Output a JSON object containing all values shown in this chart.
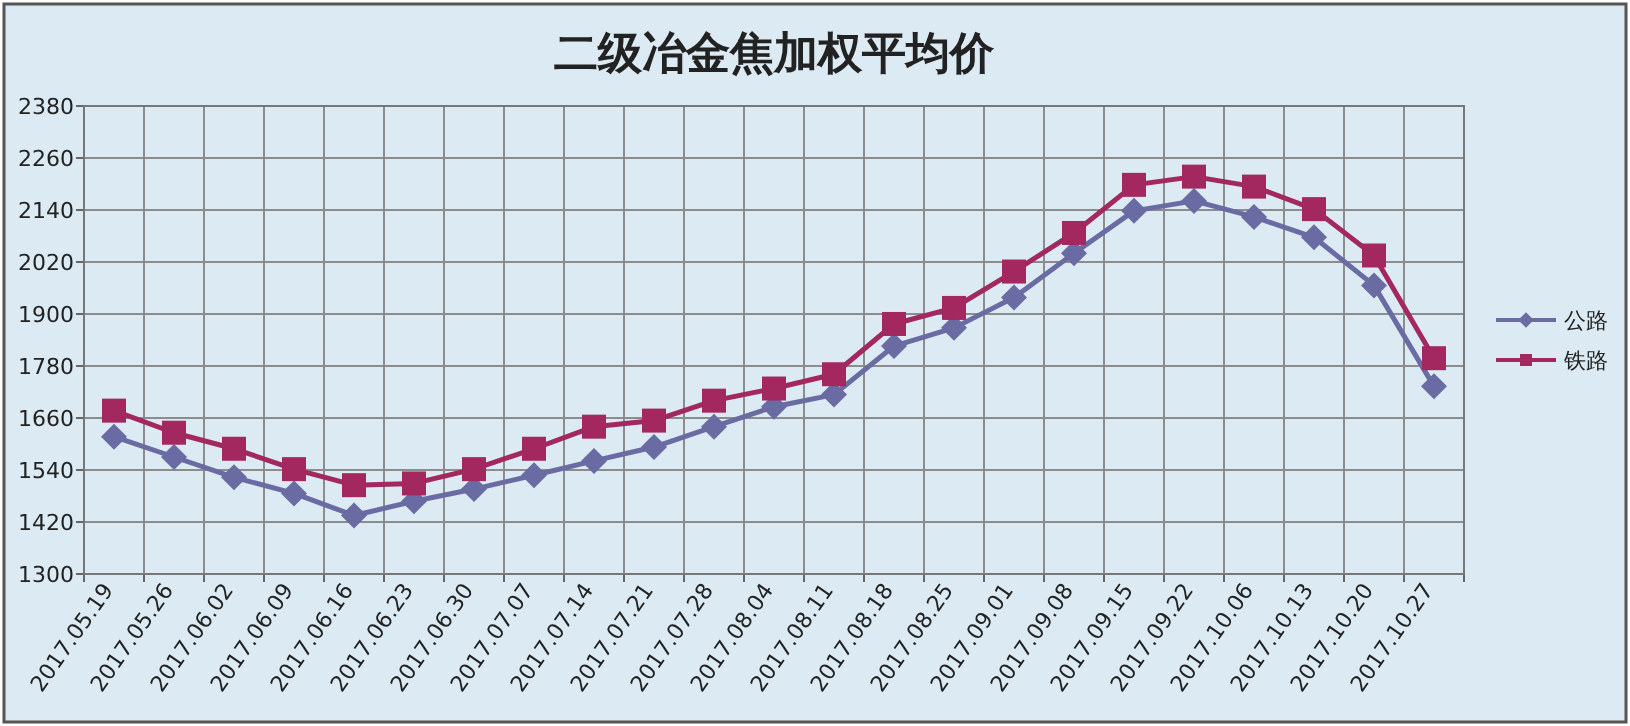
{
  "chart_data": {
    "type": "line",
    "title": "二级冶金焦加权平均价",
    "categories": [
      "2017.05.19",
      "2017.05.26",
      "2017.06.02",
      "2017.06.09",
      "2017.06.16",
      "2017.06.23",
      "2017.06.30",
      "2017.07.07",
      "2017.07.14",
      "2017.07.21",
      "2017.07.28",
      "2017.08.04",
      "2017.08.11",
      "2017.08.18",
      "2017.08.25",
      "2017.09.01",
      "2017.09.08",
      "2017.09.15",
      "2017.09.22",
      "2017.10.06",
      "2017.10.13",
      "2017.10.20",
      "2017.10.27"
    ],
    "series": [
      {
        "name": "公路",
        "color": "#6b6ba3",
        "marker": "diamond",
        "values": [
          1617,
          1570,
          1523,
          1486,
          1435,
          1468,
          1496,
          1528,
          1561,
          1593,
          1640,
          1686,
          1714,
          1826,
          1868,
          1938,
          2040,
          2138,
          2161,
          2124,
          2077,
          1966,
          1733
        ]
      },
      {
        "name": "铁路",
        "color": "#a3285f",
        "marker": "square",
        "values": [
          1677,
          1626,
          1589,
          1542,
          1505,
          1509,
          1542,
          1589,
          1640,
          1654,
          1700,
          1728,
          1761,
          1877,
          1914,
          1998,
          2087,
          2198,
          2217,
          2194,
          2142,
          2035,
          1798
        ]
      }
    ],
    "ylim": [
      1300,
      2380
    ],
    "yticks": [
      1300,
      1420,
      1540,
      1660,
      1780,
      1900,
      2020,
      2140,
      2260,
      2380
    ],
    "grid": true,
    "legend": "right",
    "line_style": "solid"
  }
}
